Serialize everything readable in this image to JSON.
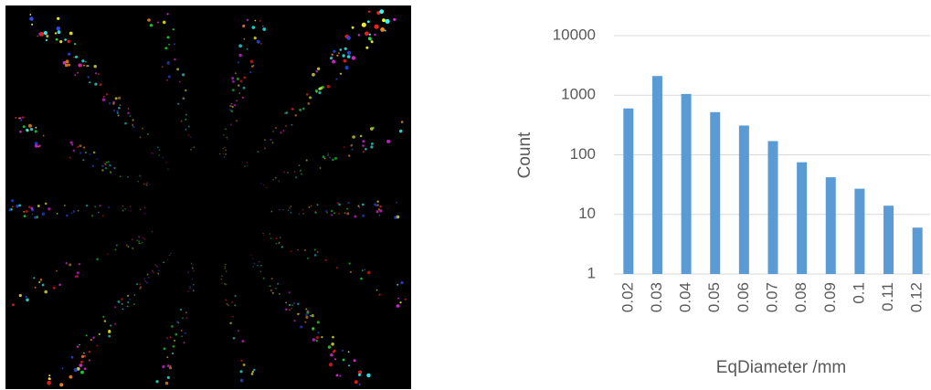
{
  "chart_data": {
    "type": "bar",
    "x_label": "EqDiameter /mm",
    "y_label": "Count",
    "categories": [
      "0.02",
      "0.03",
      "0.04",
      "0.05",
      "0.06",
      "0.07",
      "0.08",
      "0.09",
      "0.1",
      "0.11",
      "0.12"
    ],
    "values": [
      600,
      2100,
      1050,
      520,
      310,
      170,
      75,
      42,
      27,
      14,
      6
    ],
    "color": "#5b9bd5",
    "ylim": [
      1,
      10000
    ],
    "yticks": [
      1,
      10,
      100,
      1000,
      10000
    ],
    "log_scale": true,
    "grid": true
  }
}
